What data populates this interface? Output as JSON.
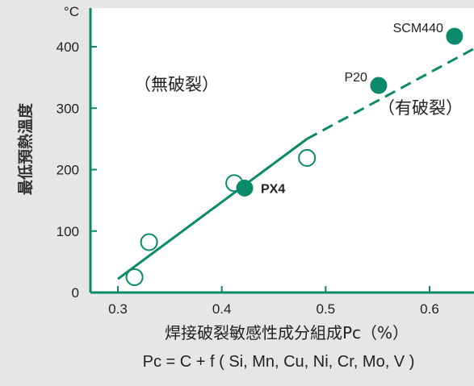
{
  "chart_data": {
    "type": "scatter",
    "title": "",
    "ylabel": "最低預熱溫度",
    "y_unit": "°C",
    "xlabel": "焊接破裂敏感性成分組成Pc（%）",
    "formula": "Pc = C + f ( Si, Mn, Cu, Ni, Cr, Mo, V )",
    "xlim": [
      0.28,
      0.69
    ],
    "ylim": [
      0,
      440
    ],
    "x_ticks": [
      "0.3",
      "0.4",
      "0.5",
      "0.6"
    ],
    "y_ticks": [
      "0",
      "100",
      "200",
      "300",
      "400"
    ],
    "grid": false,
    "regions": {
      "no_crack": "（無破裂）",
      "crack": "（有破裂）"
    },
    "open_points": [
      {
        "x": 0.316,
        "y": 25
      },
      {
        "x": 0.33,
        "y": 82
      },
      {
        "x": 0.412,
        "y": 178
      },
      {
        "x": 0.482,
        "y": 219
      }
    ],
    "filled_points": [
      {
        "x": 0.422,
        "y": 170,
        "label": "PX4"
      },
      {
        "x": 0.551,
        "y": 337,
        "label": "P20"
      },
      {
        "x": 0.624,
        "y": 417,
        "label": "SCM440"
      }
    ],
    "trend_solid": {
      "x": [
        0.3,
        0.482
      ],
      "y": [
        22,
        250
      ]
    },
    "trend_dashed": {
      "x": [
        0.482,
        0.69
      ],
      "y": [
        250,
        440
      ]
    },
    "colors": {
      "accent": "#0b8a6a",
      "text": "#222222",
      "background": "#e6e6e6",
      "plot_bg": "#ffffff"
    }
  }
}
